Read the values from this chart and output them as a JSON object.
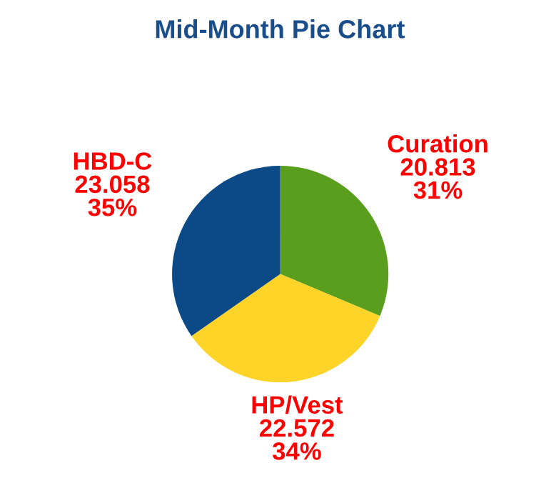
{
  "chart_data": {
    "type": "pie",
    "title": "Mid-Month Pie Chart",
    "categories": [
      "Curation",
      "HP/Vest",
      "HBD-C"
    ],
    "values": [
      20.813,
      22.572,
      23.058
    ],
    "colors": [
      "#5a9e1e",
      "#fdd427",
      "#0c4a87"
    ],
    "value_labels": [
      "20.813\n31%",
      "22.572\n34%",
      "23.058\n35%"
    ],
    "legend": false
  }
}
